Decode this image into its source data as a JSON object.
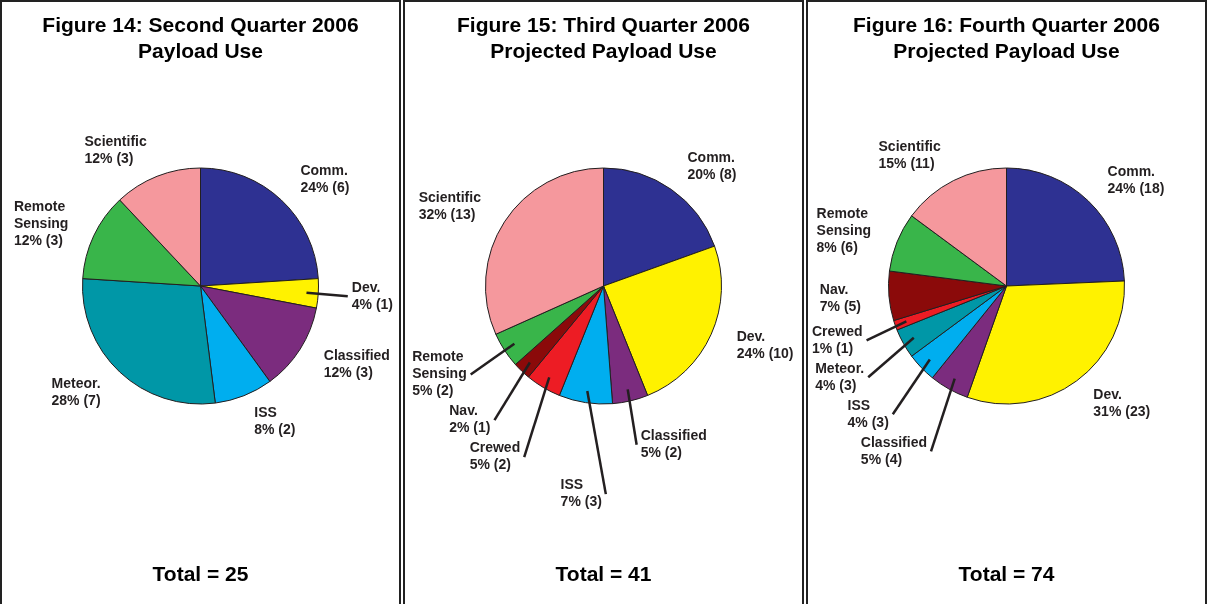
{
  "chart_data": [
    {
      "type": "pie",
      "title": "Figure 14: Second Quarter 2006 Payload Use",
      "categories": [
        "Comm.",
        "Dev.",
        "Classified",
        "ISS",
        "Meteor.",
        "Remote Sensing",
        "Scientific"
      ],
      "values": [
        6,
        1,
        3,
        2,
        7,
        3,
        3
      ],
      "colors": [
        "#2e3192",
        "#fff200",
        "#7b2c7e",
        "#00aeef",
        "#0097a7",
        "#39b54a",
        "#f5989d"
      ],
      "value_labels": [
        "24% (6)",
        "4% (1)",
        "12% (3)",
        "8% (2)",
        "28% (7)",
        "12% (3)",
        "12% (3)"
      ],
      "annotations": [
        "Total = 25"
      ]
    },
    {
      "type": "pie",
      "title": "Figure 15: Third Quarter 2006 Projected Payload Use",
      "categories": [
        "Comm.",
        "Dev.",
        "Classified",
        "ISS",
        "Crewed",
        "Nav.",
        "Remote Sensing",
        "Scientific"
      ],
      "values": [
        8,
        10,
        2,
        3,
        2,
        1,
        2,
        13
      ],
      "colors": [
        "#2e3192",
        "#fff200",
        "#7b2c7e",
        "#00aeef",
        "#ed1c24",
        "#8b0a0a",
        "#39b54a",
        "#f5989d"
      ],
      "value_labels": [
        "20% (8)",
        "24% (10)",
        "5% (2)",
        "7% (3)",
        "5% (2)",
        "2% (1)",
        "5% (2)",
        "32% (13)"
      ],
      "annotations": [
        "Total = 41"
      ]
    },
    {
      "type": "pie",
      "title": "Figure 16: Fourth Quarter 2006 Projected Payload Use",
      "categories": [
        "Comm.",
        "Dev.",
        "Classified",
        "ISS",
        "Meteor.",
        "Crewed",
        "Nav.",
        "Remote Sensing",
        "Scientific"
      ],
      "values": [
        18,
        23,
        4,
        3,
        3,
        1,
        5,
        6,
        11
      ],
      "colors": [
        "#2e3192",
        "#fff200",
        "#7b2c7e",
        "#00aeef",
        "#0097a7",
        "#ed1c24",
        "#8b0a0a",
        "#39b54a",
        "#f5989d"
      ],
      "value_labels": [
        "24% (18)",
        "31% (23)",
        "5% (4)",
        "4% (3)",
        "4% (3)",
        "1% (1)",
        "7% (5)",
        "8% (6)",
        "15% (11)"
      ],
      "annotations": [
        "Total = 74"
      ]
    }
  ]
}
